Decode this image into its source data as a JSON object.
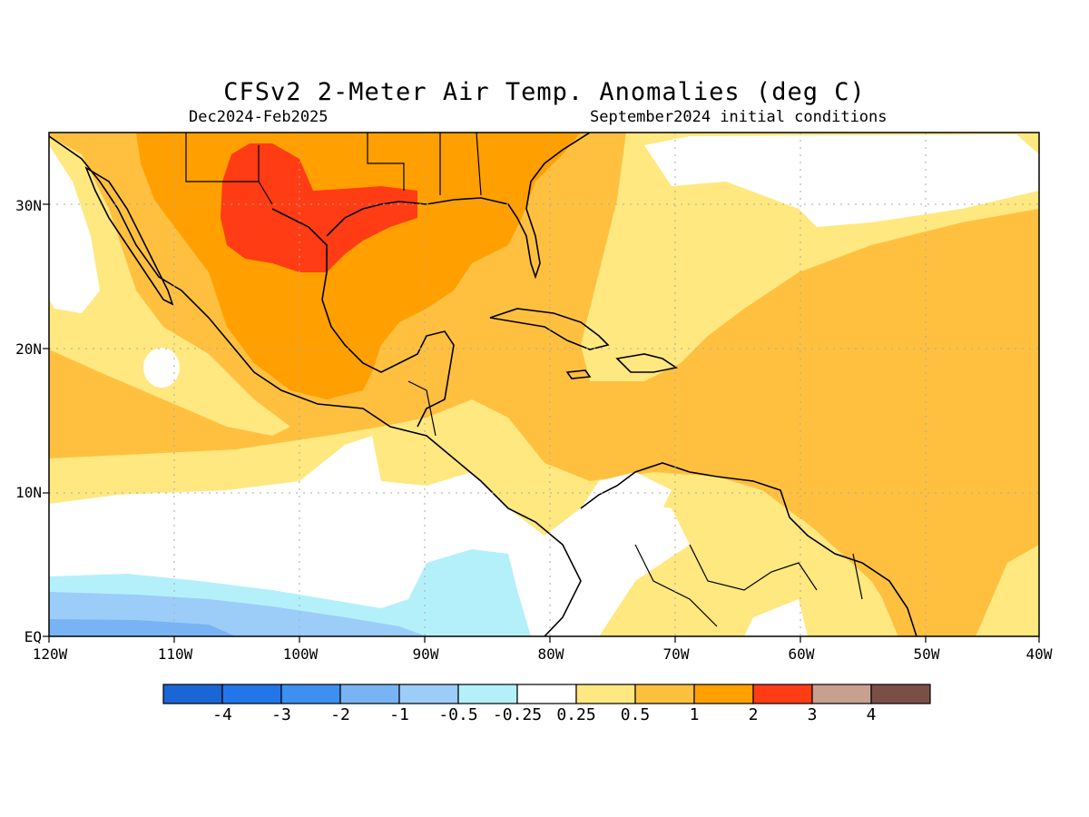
{
  "title": "CFSv2 2-Meter Air Temp. Anomalies (deg C)",
  "subtitle_left": "Dec2024-Feb2025",
  "subtitle_right": "September2024 initial conditions",
  "lat_labels": [
    "30N",
    "20N",
    "10N",
    "EQ"
  ],
  "lon_labels": [
    "120W",
    "110W",
    "100W",
    "90W",
    "80W",
    "70W",
    "60W",
    "50W",
    "40W"
  ],
  "colorbar": {
    "labels": [
      "-4",
      "-3",
      "-2",
      "-1",
      "-0.5",
      "-0.25",
      "0.25",
      "0.5",
      "1",
      "2",
      "3",
      "4"
    ],
    "colors": [
      "#1a66d6",
      "#2375ea",
      "#3d90f0",
      "#78b4f4",
      "#9ccdf8",
      "#b4f0fa",
      "#ffffff",
      "#ffe880",
      "#ffc040",
      "#ffa000",
      "#ff3c14",
      "#c8a090",
      "#7a5046"
    ]
  },
  "map_colors": {
    "land_line": "#000000",
    "grid": "#aaaaaa"
  }
}
